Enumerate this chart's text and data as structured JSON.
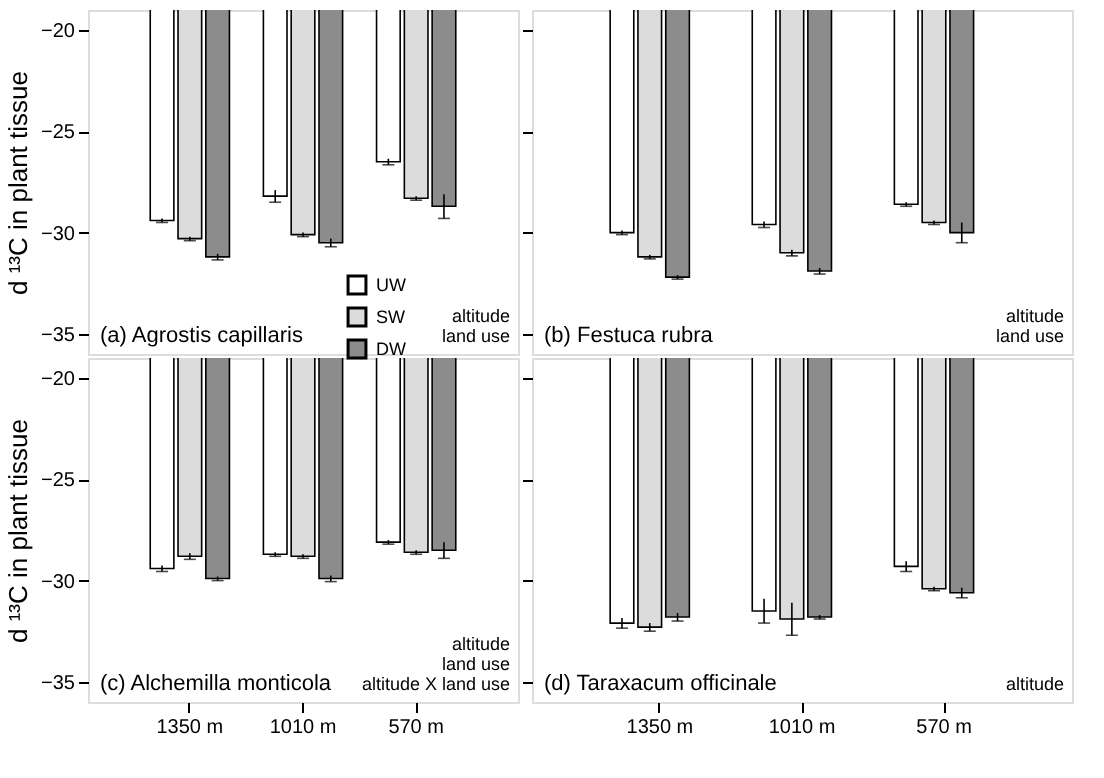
{
  "chart_data": [
    {
      "type": "bar",
      "categories": [
        "1350 m",
        "1010 m",
        "570 m"
      ],
      "ylabel": "d ¹³C in plant tissue",
      "ylim": [
        -36,
        -19
      ],
      "yticks": [
        -35,
        -30,
        -25,
        -20
      ],
      "tick_labels": "y",
      "legend": "bottom",
      "annotations": [
        "(a) Agrostis capillaris",
        "altitude\nland use"
      ],
      "series": [
        {
          "name": "UW",
          "color": "#ffffff",
          "values": [
            -29.4,
            -28.2,
            -26.5
          ],
          "errors": [
            0.1,
            0.3,
            0.15
          ]
        },
        {
          "name": "SW",
          "color": "#dcdcdc",
          "values": [
            -30.3,
            -30.1,
            -28.3
          ],
          "errors": [
            0.1,
            0.1,
            0.1
          ]
        },
        {
          "name": "DW",
          "color": "#8c8c8c",
          "values": [
            -31.2,
            -30.5,
            -28.7
          ],
          "errors": [
            0.15,
            0.2,
            0.6
          ]
        }
      ]
    },
    {
      "type": "bar",
      "categories": [
        "1350 m",
        "1010 m",
        "570 m"
      ],
      "ylim": [
        -36,
        -19
      ],
      "yticks": [
        -35,
        -30,
        -25,
        -20
      ],
      "tick_labels": false,
      "annotations": [
        "(b) Festuca rubra",
        "altitude\nland use"
      ],
      "series": [
        {
          "name": "UW",
          "color": "#ffffff",
          "values": [
            -30.0,
            -29.6,
            -28.6
          ],
          "errors": [
            0.1,
            0.15,
            0.1
          ]
        },
        {
          "name": "SW",
          "color": "#dcdcdc",
          "values": [
            -31.2,
            -31.0,
            -29.5
          ],
          "errors": [
            0.1,
            0.15,
            0.1
          ]
        },
        {
          "name": "DW",
          "color": "#8c8c8c",
          "values": [
            -32.2,
            -31.9,
            -30.0
          ],
          "errors": [
            0.1,
            0.15,
            0.5
          ]
        }
      ]
    },
    {
      "type": "bar",
      "categories": [
        "1350 m",
        "1010 m",
        "570 m"
      ],
      "ylabel": "d ¹³C in plant tissue",
      "ylim": [
        -36,
        -19
      ],
      "yticks": [
        -35,
        -30,
        -25,
        -20
      ],
      "annotations": [
        "(c) Alchemilla monticola",
        "altitude\nland use\naltitude X land use"
      ],
      "series": [
        {
          "name": "UW",
          "color": "#ffffff",
          "values": [
            -29.4,
            -28.7,
            -28.1
          ],
          "errors": [
            0.15,
            0.1,
            0.1
          ]
        },
        {
          "name": "SW",
          "color": "#dcdcdc",
          "values": [
            -28.8,
            -28.8,
            -28.6
          ],
          "errors": [
            0.15,
            0.1,
            0.1
          ]
        },
        {
          "name": "DW",
          "color": "#8c8c8c",
          "values": [
            -29.9,
            -29.9,
            -28.5
          ],
          "errors": [
            0.1,
            0.15,
            0.4
          ]
        }
      ]
    },
    {
      "type": "bar",
      "categories": [
        "1350 m",
        "1010 m",
        "570 m"
      ],
      "ylim": [
        -36,
        -19
      ],
      "yticks": [
        -35,
        -30,
        -25,
        -20
      ],
      "tick_labels": "x",
      "annotations": [
        "(d) Taraxacum officinale",
        "altitude"
      ],
      "series": [
        {
          "name": "UW",
          "color": "#ffffff",
          "values": [
            -32.1,
            -31.5,
            -29.3
          ],
          "errors": [
            0.25,
            0.6,
            0.25
          ]
        },
        {
          "name": "SW",
          "color": "#dcdcdc",
          "values": [
            -32.3,
            -31.9,
            -30.4
          ],
          "errors": [
            0.2,
            0.8,
            0.1
          ]
        },
        {
          "name": "DW",
          "color": "#8c8c8c",
          "values": [
            -31.8,
            -31.8,
            -30.6
          ],
          "errors": [
            0.2,
            0.1,
            0.25
          ]
        }
      ]
    }
  ]
}
